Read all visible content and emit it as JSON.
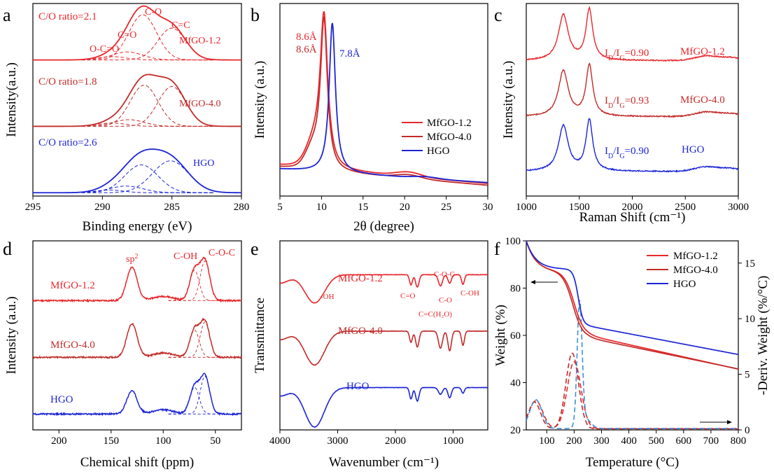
{
  "colors": {
    "mfgo12": "#e8262a",
    "mfgo40": "#c22b28",
    "hgo": "#1b25d6",
    "tga_hgo_deriv": "#3b8fd8"
  },
  "chart_data": [
    {
      "id": "a",
      "type": "line",
      "panel_label": "a",
      "title": "",
      "xlabel": "Binding energy (eV)",
      "ylabel": "Intensity(a.u.)",
      "xlim": [
        295,
        280
      ],
      "xticks": [
        "295",
        "290",
        "285",
        "280"
      ],
      "series": [
        {
          "name": "MfGO-1.2",
          "color": "mfgo12",
          "offset": 2.05,
          "peaks": [
            [
              287.1,
              0.68,
              1.0
            ],
            [
              285.0,
              0.48,
              1.0
            ],
            [
              288.2,
              0.12,
              1.1
            ],
            [
              289.3,
              0.05,
              1.0
            ]
          ]
        },
        {
          "name": "MfGO-4.0",
          "color": "mfgo40",
          "offset": 1.05,
          "peaks": [
            [
              287.0,
              0.62,
              1.0
            ],
            [
              285.0,
              0.6,
              1.0
            ],
            [
              288.1,
              0.1,
              1.1
            ],
            [
              289.3,
              0.05,
              1.0
            ]
          ]
        },
        {
          "name": "HGO",
          "color": "hgo",
          "offset": 0.05,
          "peaks": [
            [
              287.2,
              0.42,
              1.2
            ],
            [
              285.1,
              0.48,
              1.3
            ],
            [
              288.3,
              0.1,
              1.2
            ],
            [
              289.5,
              0.04,
              1.0
            ]
          ]
        }
      ],
      "annotations": [
        {
          "text": "C/O ratio=2.1",
          "color": "mfgo12"
        },
        {
          "text": "C-O",
          "color": "mfgo12"
        },
        {
          "text": "C=C",
          "color": "mfgo12"
        },
        {
          "text": "C=O",
          "color": "mfgo12"
        },
        {
          "text": "O-C=O",
          "color": "mfgo12"
        },
        {
          "text": "MfGO-1.2",
          "color": "mfgo12"
        },
        {
          "text": "C/O ratio=1.8",
          "color": "mfgo40"
        },
        {
          "text": "MfGO-4.0",
          "color": "mfgo40"
        },
        {
          "text": "C/O ratio=2.6",
          "color": "hgo"
        },
        {
          "text": "HGO",
          "color": "hgo"
        }
      ]
    },
    {
      "id": "b",
      "type": "line",
      "panel_label": "b",
      "xlabel": "2θ (degree)",
      "ylabel": "Intensity (a.u.)",
      "xlim": [
        5,
        30
      ],
      "xticks": [
        "5",
        "10",
        "15",
        "20",
        "25",
        "30"
      ],
      "series": [
        {
          "name": "MfGO-1.2",
          "color": "mfgo12",
          "peak_2theta": 10.3
        },
        {
          "name": "MfGO-4.0",
          "color": "mfgo40",
          "peak_2theta": 10.3
        },
        {
          "name": "HGO",
          "color": "hgo",
          "peak_2theta": 11.3
        }
      ],
      "legend": [
        "MfGO-1.2",
        "MfGO-4.0",
        "HGO"
      ],
      "legend_position": "center-right",
      "annotations": [
        {
          "text": "8.6Å",
          "color": "mfgo12"
        },
        {
          "text": "8.6Å",
          "color": "mfgo40"
        },
        {
          "text": "7.8Å",
          "color": "hgo"
        }
      ]
    },
    {
      "id": "c",
      "type": "line",
      "panel_label": "c",
      "xlabel": "Raman Shift (cm⁻¹)",
      "ylabel": "Intensity (a.u.)",
      "xlim": [
        1000,
        3000
      ],
      "xticks": [
        "1000",
        "1500",
        "2000",
        "2500",
        "3000"
      ],
      "series": [
        {
          "name": "MfGO-1.2",
          "color": "mfgo12",
          "ratio_label": "0.90"
        },
        {
          "name": "MfGO-4.0",
          "color": "mfgo40",
          "ratio_label": "0.93"
        },
        {
          "name": "HGO",
          "color": "hgo",
          "ratio_label": "0.90"
        }
      ],
      "annotations": [
        {
          "text": "MfGO-1.2",
          "color": "mfgo12"
        },
        {
          "text": "MfGO-4.0",
          "color": "mfgo40"
        },
        {
          "text": "HGO",
          "color": "hgo"
        }
      ],
      "ratio_prefix": "I",
      "ratio_sub_d": "D",
      "ratio_sub_g": "G"
    },
    {
      "id": "d",
      "type": "line",
      "panel_label": "d",
      "xlabel": "Chemical shift (ppm)",
      "ylabel": "Intensity (a.u.)",
      "xlim": [
        225,
        25
      ],
      "xticks": [
        "200",
        "150",
        "100",
        "50"
      ],
      "series": [
        {
          "name": "MfGO-1.2",
          "color": "mfgo12"
        },
        {
          "name": "MfGO-4.0",
          "color": "mfgo40"
        },
        {
          "name": "HGO",
          "color": "hgo"
        }
      ],
      "annotations": [
        {
          "text": "sp",
          "sup": "2",
          "color": "mfgo12"
        },
        {
          "text": "C-OH",
          "color": "mfgo12"
        },
        {
          "text": "C-O-C",
          "color": "mfgo12"
        },
        {
          "text": "MfGO-1.2",
          "color": "mfgo12"
        },
        {
          "text": "MfGO-4.0",
          "color": "mfgo40"
        },
        {
          "text": "HGO",
          "color": "hgo"
        }
      ]
    },
    {
      "id": "e",
      "type": "line",
      "panel_label": "e",
      "xlabel": "Wavenumber (cm⁻¹)",
      "ylabel": "Transmittance",
      "xlim": [
        4000,
        400
      ],
      "xticks": [
        "4000",
        "3000",
        "2000",
        "1000"
      ],
      "series": [
        {
          "name": "MfGO-1.2",
          "color": "mfgo12"
        },
        {
          "name": "MfGO-4.0",
          "color": "mfgo40"
        },
        {
          "name": "HGO",
          "color": "hgo"
        }
      ],
      "annotations": [
        {
          "text": "MfGO-1.2",
          "color": "mfgo12"
        },
        {
          "text": "-OH",
          "color": "mfgo12"
        },
        {
          "text": "C=O",
          "color": "mfgo12"
        },
        {
          "text": "C-O-C",
          "color": "mfgo12"
        },
        {
          "text": "C-O",
          "color": "mfgo12"
        },
        {
          "text": "C-OH",
          "color": "mfgo12"
        },
        {
          "text": "C=C(H₂O)",
          "color": "mfgo12"
        },
        {
          "text": "MfGO-4.0",
          "color": "mfgo40"
        },
        {
          "text": "HGO",
          "color": "hgo"
        }
      ]
    },
    {
      "id": "f",
      "type": "line",
      "panel_label": "f",
      "xlabel": "Temperature (°C)",
      "ylabel": "Weight (%)",
      "y2label": "-Deriv. Weight (%/°C)",
      "xlim": [
        25,
        800
      ],
      "ylim": [
        20,
        100
      ],
      "y2lim": [
        0,
        17
      ],
      "xticks": [
        "100",
        "200",
        "300",
        "400",
        "500",
        "600",
        "700",
        "800"
      ],
      "yticks": [
        "20",
        "40",
        "60",
        "80",
        "100"
      ],
      "y2ticks": [
        "0",
        "5",
        "10",
        "15"
      ],
      "series": [
        {
          "name": "MfGO-1.2",
          "color": "mfgo12",
          "weight_800C": 43,
          "deriv_peak_C": 200
        },
        {
          "name": "MfGO-4.0",
          "color": "mfgo40",
          "weight_800C": 43,
          "deriv_peak_C": 195
        },
        {
          "name": "HGO",
          "color": "hgo",
          "weight_800C": 48,
          "deriv_peak_C": 220
        }
      ],
      "legend": [
        "MfGO-1.2",
        "MfGO-4.0",
        "HGO"
      ],
      "legend_position": "top-right"
    }
  ]
}
